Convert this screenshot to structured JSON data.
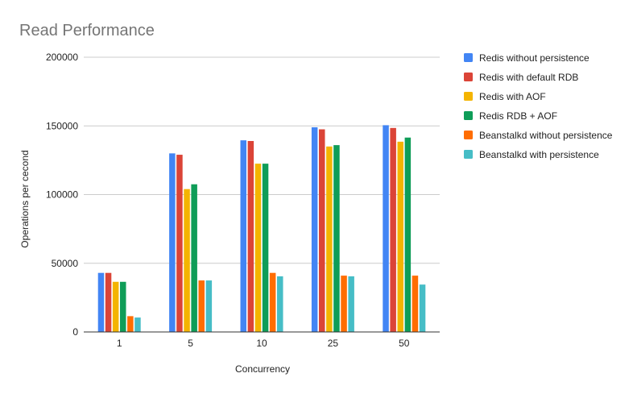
{
  "chart_data": {
    "type": "bar",
    "title": "Read Performance",
    "xlabel": "Concurrency",
    "ylabel": "Operations per cecond",
    "categories": [
      "1",
      "5",
      "10",
      "25",
      "50"
    ],
    "ylim": [
      0,
      200000
    ],
    "yticks": [
      0,
      50000,
      100000,
      150000,
      200000
    ],
    "grid": true,
    "legend_position": "right",
    "series": [
      {
        "name": "Redis without persistence",
        "color": "#4285f4",
        "values": [
          43000,
          130000,
          139500,
          149000,
          150500
        ]
      },
      {
        "name": "Redis with default RDB",
        "color": "#db4437",
        "values": [
          43000,
          129000,
          139000,
          147500,
          148500
        ]
      },
      {
        "name": "Redis with AOF",
        "color": "#f4b400",
        "values": [
          36500,
          104000,
          122500,
          135000,
          138500
        ]
      },
      {
        "name": "Redis RDB + AOF",
        "color": "#0f9d58",
        "values": [
          36500,
          107500,
          122500,
          136000,
          141500
        ]
      },
      {
        "name": "Beanstalkd without persistence",
        "color": "#ff6d01",
        "values": [
          11500,
          37500,
          43000,
          41000,
          41000
        ]
      },
      {
        "name": "Beanstalkd with persistence",
        "color": "#46bdc6",
        "values": [
          10500,
          37500,
          40500,
          40500,
          34500
        ]
      }
    ]
  }
}
